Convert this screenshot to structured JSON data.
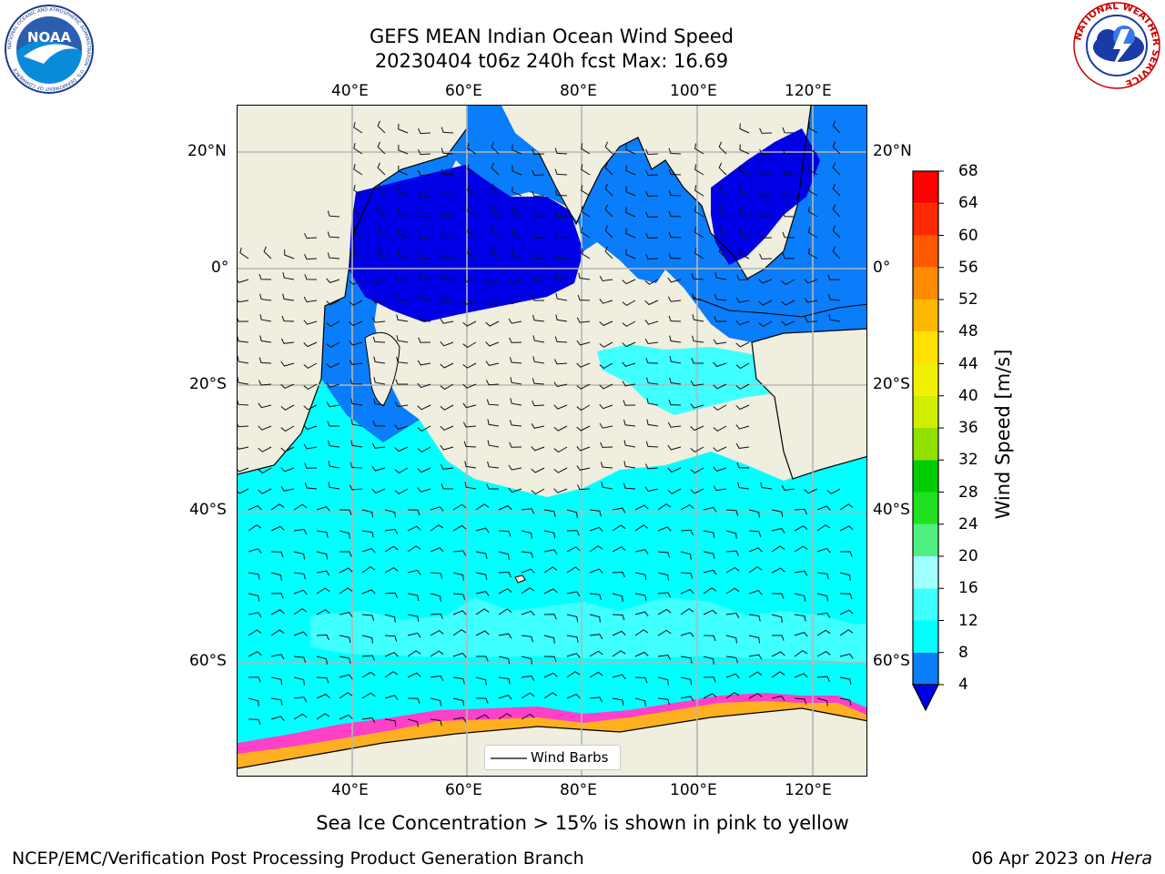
{
  "header": {
    "title_line1": "GEFS MEAN Indian Ocean Wind Speed",
    "title_line2": "20230404 t06z 240h fcst   Max: 16.69"
  },
  "logos": {
    "noaa_text": "NOAA",
    "noaa_ring_text": "NATIONAL OCEANIC AND ATMOSPHERIC ADMINISTRATION · U.S. DEPARTMENT OF COMMERCE",
    "nws_ring_text": "NATIONAL WEATHER SERVICE"
  },
  "map": {
    "lon_ticks": [
      "40°E",
      "60°E",
      "80°E",
      "100°E",
      "120°E"
    ],
    "lat_ticks": [
      "20°N",
      "0°",
      "20°S",
      "40°S",
      "60°S"
    ],
    "legend_label": "Wind Barbs",
    "colors": {
      "land": "#efeedf",
      "grid": "#b5b5b5"
    }
  },
  "colorbar": {
    "label": "Wind Speed [m/s]",
    "ticks": [
      "4",
      "8",
      "12",
      "16",
      "20",
      "24",
      "28",
      "32",
      "36",
      "40",
      "44",
      "48",
      "52",
      "56",
      "60",
      "64",
      "68"
    ],
    "colors": [
      "#0000e6",
      "#0a7dfa",
      "#00ffff",
      "#40ffff",
      "#a0ffff",
      "#50f080",
      "#20e020",
      "#00cc00",
      "#90e000",
      "#d0ee00",
      "#f0f000",
      "#ffe000",
      "#ffb800",
      "#ff8c00",
      "#ff5a00",
      "#ff2a00",
      "#ff0000"
    ]
  },
  "footer": {
    "caption": "Sea Ice Concentration > 15% is shown in pink to yellow",
    "credit": "NCEP/EMC/Verification Post Processing Product Generation Branch",
    "date_text": "06 Apr 2023 on ",
    "machine": "Hera"
  }
}
